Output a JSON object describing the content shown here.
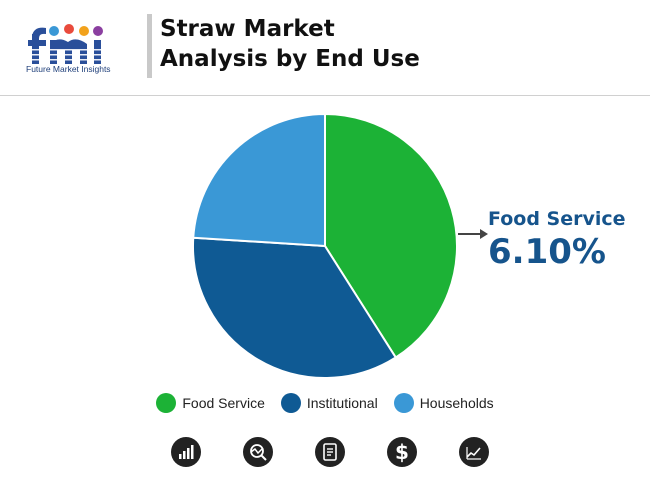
{
  "brand": {
    "logo_text": "fmi",
    "tagline": "Future Market Insights"
  },
  "title_lines": [
    "Straw Market",
    "Analysis by End Use"
  ],
  "colors": {
    "food_service": "#1cb236",
    "institutional": "#0f5a94",
    "households": "#3a98d6",
    "callout": "#16548c"
  },
  "callout": {
    "name": "Food Service",
    "value": "6.10%"
  },
  "legend": [
    {
      "label": "Food Service",
      "color": "#1cb236"
    },
    {
      "label": "Institutional",
      "color": "#0f5a94"
    },
    {
      "label": "Households",
      "color": "#3a98d6"
    }
  ],
  "footer_icons": [
    "bar-chart-icon",
    "analysis-chart-icon",
    "report-document-icon",
    "dollar-icon",
    "trend-chart-icon"
  ],
  "chart_data": {
    "type": "pie",
    "title": "Straw Market Analysis by End Use",
    "series": [
      {
        "name": "Food Service",
        "value": 41,
        "color": "#1cb236"
      },
      {
        "name": "Institutional",
        "value": 35,
        "color": "#0f5a94"
      },
      {
        "name": "Households",
        "value": 24,
        "color": "#3a98d6"
      }
    ],
    "start_angle_deg": 0,
    "direction": "clockwise",
    "legend": "bottom",
    "annotation": {
      "label": "Food Service",
      "value": "6.10%"
    }
  }
}
